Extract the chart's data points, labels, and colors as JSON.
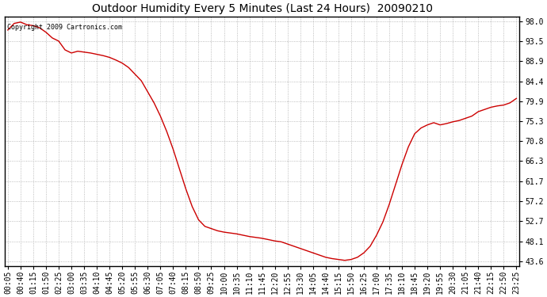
{
  "title": "Outdoor Humidity Every 5 Minutes (Last 24 Hours)  20090210",
  "copyright": "Copyright 2009 Cartronics.com",
  "line_color": "#cc0000",
  "background_color": "#ffffff",
  "plot_bg_color": "#ffffff",
  "grid_color": "#aaaaaa",
  "yticks": [
    43.6,
    48.1,
    52.7,
    57.2,
    61.7,
    66.3,
    70.8,
    75.3,
    79.9,
    84.4,
    88.9,
    93.5,
    98.0
  ],
  "xtick_labels": [
    "00:05",
    "00:40",
    "01:15",
    "01:50",
    "02:25",
    "03:00",
    "03:35",
    "04:10",
    "04:45",
    "05:20",
    "05:55",
    "06:30",
    "07:05",
    "07:40",
    "08:15",
    "08:50",
    "09:25",
    "10:00",
    "10:35",
    "11:10",
    "11:45",
    "12:20",
    "12:55",
    "13:30",
    "14:05",
    "14:40",
    "15:15",
    "15:50",
    "16:25",
    "17:00",
    "17:35",
    "18:10",
    "18:45",
    "19:20",
    "19:55",
    "20:30",
    "21:05",
    "21:40",
    "22:15",
    "22:50",
    "23:25"
  ],
  "humidity_values": [
    96.0,
    97.5,
    97.8,
    97.2,
    97.0,
    96.5,
    95.5,
    94.2,
    93.5,
    91.5,
    90.8,
    91.2,
    91.0,
    90.8,
    90.5,
    90.2,
    89.8,
    89.2,
    88.5,
    87.5,
    86.0,
    84.5,
    82.0,
    79.5,
    76.5,
    73.0,
    69.0,
    64.5,
    60.0,
    56.0,
    53.0,
    51.5,
    51.0,
    50.5,
    50.2,
    50.0,
    49.8,
    49.5,
    49.2,
    49.0,
    48.8,
    48.5,
    48.2,
    48.0,
    47.5,
    47.0,
    46.5,
    46.0,
    45.5,
    45.0,
    44.5,
    44.2,
    44.0,
    43.8,
    44.0,
    44.5,
    45.5,
    47.0,
    49.5,
    52.5,
    56.5,
    61.0,
    65.5,
    69.5,
    72.5,
    73.8,
    74.5,
    75.0,
    74.5,
    74.8,
    75.2,
    75.5,
    76.0,
    76.5,
    77.5,
    78.0,
    78.5,
    78.8,
    79.0,
    79.5,
    80.5
  ],
  "ylim_min": 43.6,
  "ylim_max": 98.0,
  "title_fontsize": 10,
  "tick_fontsize": 7,
  "copyright_fontsize": 6
}
